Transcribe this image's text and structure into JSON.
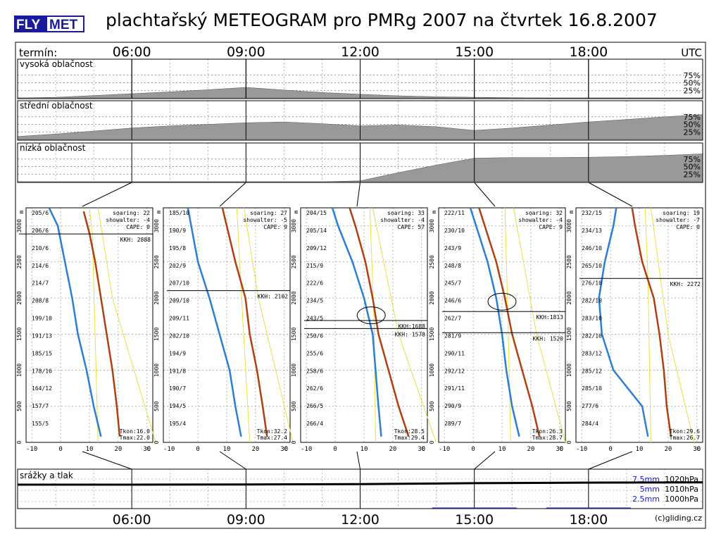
{
  "logo": {
    "text": "FLYMET",
    "fly": "FLY",
    "met": "MET",
    "colors": {
      "box": "#1a1a9c",
      "fly": "#ffffff"
    }
  },
  "title": "plachtařský METEOGRAM pro PMRg 2007 na čtvrtek 16.8.2007",
  "copyright": "(c)gliding.cz",
  "chart_data": [
    {
      "type": "area",
      "name_key": "cloud_layers",
      "termin_label": "termín:",
      "time_labels": [
        "06:00",
        "09:00",
        "12:00",
        "15:00",
        "18:00"
      ],
      "utc_label": "UTC",
      "percent_labels": [
        "75%",
        "50%",
        "25%"
      ],
      "fill_color": "#999999",
      "x_hours": [
        3,
        4,
        5,
        6,
        7,
        8,
        9,
        10,
        11,
        12,
        13,
        14,
        15,
        16,
        17,
        18,
        19,
        20,
        21
      ],
      "panels": [
        {
          "label": "vysoká oblačnost",
          "values": [
            0,
            2,
            8,
            14,
            20,
            27,
            35,
            26,
            18,
            12,
            7,
            4,
            2,
            1,
            0,
            0,
            0,
            0,
            0
          ]
        },
        {
          "label": "střední oblačnost",
          "values": [
            10,
            18,
            28,
            38,
            45,
            50,
            55,
            58,
            52,
            45,
            48,
            42,
            30,
            38,
            48,
            58,
            66,
            75,
            82
          ]
        },
        {
          "label": "nízká oblačnost",
          "values": [
            0,
            0,
            0,
            0,
            0,
            0,
            0,
            0,
            0,
            3,
            30,
            55,
            78,
            80,
            80,
            81,
            83,
            87,
            92
          ]
        }
      ]
    },
    {
      "type": "line",
      "name_key": "soundings",
      "height_ticks": [
        0,
        500,
        1000,
        1500,
        2000,
        2500,
        3000
      ],
      "height_unit": "m",
      "temp_ticks": [
        -10,
        0,
        10,
        20,
        30
      ],
      "temp_unit": "C",
      "ylim": [
        0,
        3250
      ],
      "xlim": [
        -12,
        32
      ],
      "series_colors": {
        "dewpoint": "#2a7fd4",
        "temperature": "#b04010",
        "adiabat": "#e8e040",
        "kkh": "#000000"
      },
      "soundings": [
        {
          "time": "06:00",
          "soaring": "soaring: 22",
          "showalter": "showalter: -4",
          "cape": "CAPE:  0",
          "kkh": [
            {
              "label": "KKH: 2888",
              "height": 2888
            }
          ],
          "tkon": "Tkon:16.0",
          "tmax": "Tmax:22.0",
          "winds": [
            "205/6",
            "206/6",
            "210/6",
            "214/6",
            "214/7",
            "208/8",
            "199/10",
            "191/13",
            "185/15",
            "178/16",
            "164/12",
            "157/7",
            "155/5"
          ],
          "temperature": [
            [
              20.5,
              80
            ],
            [
              19.5,
              500
            ],
            [
              18,
              1000
            ],
            [
              16,
              1500
            ],
            [
              14,
              2000
            ],
            [
              12,
              2500
            ],
            [
              10,
              2900
            ],
            [
              9,
              3050
            ],
            [
              8,
              3200
            ]
          ],
          "dewpoint": [
            [
              14,
              80
            ],
            [
              11.5,
              500
            ],
            [
              9,
              1000
            ],
            [
              6,
              1500
            ],
            [
              4,
              2000
            ],
            [
              1.5,
              2500
            ],
            [
              -1,
              3000
            ],
            [
              -4,
              3250
            ]
          ],
          "adiabat": [
            [
              [
                13,
                0
              ],
              [
                11,
                2888
              ],
              [
                10,
                3250
              ]
            ],
            [
              [
                33,
                0
              ],
              [
                18,
                2000
              ],
              [
                13,
                3250
              ]
            ]
          ]
        },
        {
          "time": "09:00",
          "soaring": "soaring: 27",
          "showalter": "showalter: -5",
          "cape": "CAPE:  9",
          "kkh": [
            {
              "label": "KKH: 2102",
              "height": 2102
            }
          ],
          "tkon": "Tkon:32.2",
          "tmax": "Tmax:27.4",
          "winds": [
            "185/10",
            "190/9",
            "195/8",
            "202/9",
            "207/10",
            "209/10",
            "209/11",
            "202/10",
            "194/9",
            "191/8",
            "190/7",
            "194/5",
            "195/4"
          ],
          "temperature": [
            [
              24,
              80
            ],
            [
              22.5,
              500
            ],
            [
              20.5,
              1000
            ],
            [
              18,
              1500
            ],
            [
              16.5,
              2000
            ],
            [
              13,
              2500
            ],
            [
              10,
              3000
            ],
            [
              8.5,
              3250
            ]
          ],
          "dewpoint": [
            [
              15,
              80
            ],
            [
              13,
              500
            ],
            [
              11,
              1000
            ],
            [
              7.5,
              1500
            ],
            [
              4,
              2000
            ],
            [
              0,
              2500
            ],
            [
              -3.5,
              3250
            ]
          ],
          "adiabat": [
            [
              [
                18,
                0
              ],
              [
                15,
                2102
              ],
              [
                13.5,
                3250
              ]
            ],
            [
              [
                33,
                0
              ],
              [
                21,
                2000
              ],
              [
                16,
                3250
              ]
            ]
          ]
        },
        {
          "time": "12:00",
          "soaring": "soaring: 33",
          "showalter": "showalter: -4",
          "cape": "CAPE: 57",
          "kkh": [
            {
              "label": "KKH:1688",
              "height": 1688
            },
            {
              "label": "KKH: 1578",
              "height": 1578
            }
          ],
          "tkon": "Tkon:28.5",
          "tmax": "Tmax:29.4",
          "winds": [
            "204/15",
            "205/14",
            "209/12",
            "215/9",
            "222/6",
            "234/5",
            "243/5",
            "250/6",
            "255/6",
            "258/6",
            "262/6",
            "266/5",
            "266/4"
          ],
          "temperature": [
            [
              25.5,
              80
            ],
            [
              22,
              500
            ],
            [
              18.5,
              1000
            ],
            [
              15,
              1500
            ],
            [
              13,
              2000
            ],
            [
              10.5,
              2500
            ],
            [
              7,
              3000
            ],
            [
              5,
              3250
            ]
          ],
          "dewpoint": [
            [
              16,
              80
            ],
            [
              15,
              500
            ],
            [
              14,
              1000
            ],
            [
              13,
              1500
            ],
            [
              10,
              2000
            ],
            [
              6,
              2500
            ],
            [
              1,
              3000
            ],
            [
              -1,
              3250
            ]
          ],
          "adiabat": [
            [
              [
                14,
                0
              ],
              [
                13.5,
                1688
              ],
              [
                12,
                3250
              ]
            ],
            [
              [
                35,
                0
              ],
              [
                22,
                1500
              ],
              [
                13,
                3250
              ]
            ]
          ],
          "circle": {
            "t": 12.5,
            "h": 1760
          }
        },
        {
          "time": "15:00",
          "soaring": "soaring: 32",
          "showalter": "showalter: -4",
          "cape": "CAPE:  9",
          "kkh": [
            {
              "label": "KKH:1813",
              "height": 1813
            },
            {
              "label": "KKH: 1520",
              "height": 1520
            }
          ],
          "tkon": "Tkon:26.3",
          "tmax": "Tmax:28.7",
          "winds": [
            "222/11",
            "230/10",
            "243/9",
            "248/8",
            "245/7",
            "246/6",
            "262/7",
            "281/9",
            "290/11",
            "292/12",
            "291/11",
            "290/9",
            "289/7"
          ],
          "temperature": [
            [
              23,
              80
            ],
            [
              20.5,
              500
            ],
            [
              17,
              1000
            ],
            [
              13.5,
              1500
            ],
            [
              11,
              2000
            ],
            [
              8,
              2500
            ],
            [
              4,
              3000
            ],
            [
              2,
              3250
            ]
          ],
          "dewpoint": [
            [
              16,
              80
            ],
            [
              13.5,
              500
            ],
            [
              11.5,
              1000
            ],
            [
              10,
              1500
            ],
            [
              8,
              2000
            ],
            [
              5,
              2500
            ],
            [
              1,
              3000
            ],
            [
              -1,
              3250
            ]
          ],
          "adiabat": [
            [
              [
                13,
                0
              ],
              [
                12,
                1813
              ],
              [
                11,
                3250
              ]
            ],
            [
              [
                32,
                0
              ],
              [
                22,
                1500
              ],
              [
                14,
                3250
              ]
            ]
          ],
          "circle": {
            "t": 10,
            "h": 1950
          }
        },
        {
          "time": "18:00",
          "soaring": "soaring: 19",
          "showalter": "showalter: -7",
          "cape": "CAPE:  0",
          "kkh": [
            {
              "label": "KKH: 2272",
              "height": 2272
            }
          ],
          "tkon": "Tkon:29.6",
          "tmax": "Tmax:26.7",
          "winds": [
            "232/15",
            "234/13",
            "246/10",
            "265/10",
            "276/10",
            "282/10",
            "283/10",
            "282/10",
            "283/12",
            "285/12",
            "285/10",
            "277/6",
            "284/4"
          ],
          "temperature": [
            [
              21,
              80
            ],
            [
              19.5,
              500
            ],
            [
              18.5,
              1000
            ],
            [
              17,
              1500
            ],
            [
              15,
              2000
            ],
            [
              11,
              2500
            ],
            [
              8.5,
              3000
            ],
            [
              7.5,
              3250
            ]
          ],
          "dewpoint": [
            [
              13,
              80
            ],
            [
              11,
              500
            ],
            [
              5,
              800
            ],
            [
              1,
              1000
            ],
            [
              -3,
              1500
            ],
            [
              -4,
              2000
            ],
            [
              -2,
              2500
            ],
            [
              1,
              3000
            ],
            [
              2,
              3250
            ]
          ],
          "adiabat": [
            [
              [
                14,
                0
              ],
              [
                13,
                2272
              ],
              [
                12,
                3250
              ]
            ],
            [
              [
                29,
                0
              ],
              [
                20,
                1500
              ],
              [
                14,
                3250
              ]
            ]
          ]
        }
      ]
    },
    {
      "type": "line",
      "name_key": "precipitation_pressure",
      "label": "srážky a tlak",
      "time_labels": [
        "06:00",
        "09:00",
        "12:00",
        "15:00",
        "18:00"
      ],
      "precip_labels": [
        "7.5mm",
        "5mm",
        "2.5mm"
      ],
      "pressure_labels": [
        "1020hPa",
        "1010hPa",
        "1000hPa"
      ],
      "precip_color": "#1a1acc",
      "x_hours": [
        3,
        6,
        9,
        12,
        15,
        18,
        21
      ],
      "pressure": [
        1015.0,
        1015.0,
        1015.1,
        1015.5,
        1016.3,
        1016.8,
        1017.0
      ],
      "precip": [
        0,
        0,
        0,
        0,
        0.05,
        0.05,
        0
      ]
    }
  ]
}
